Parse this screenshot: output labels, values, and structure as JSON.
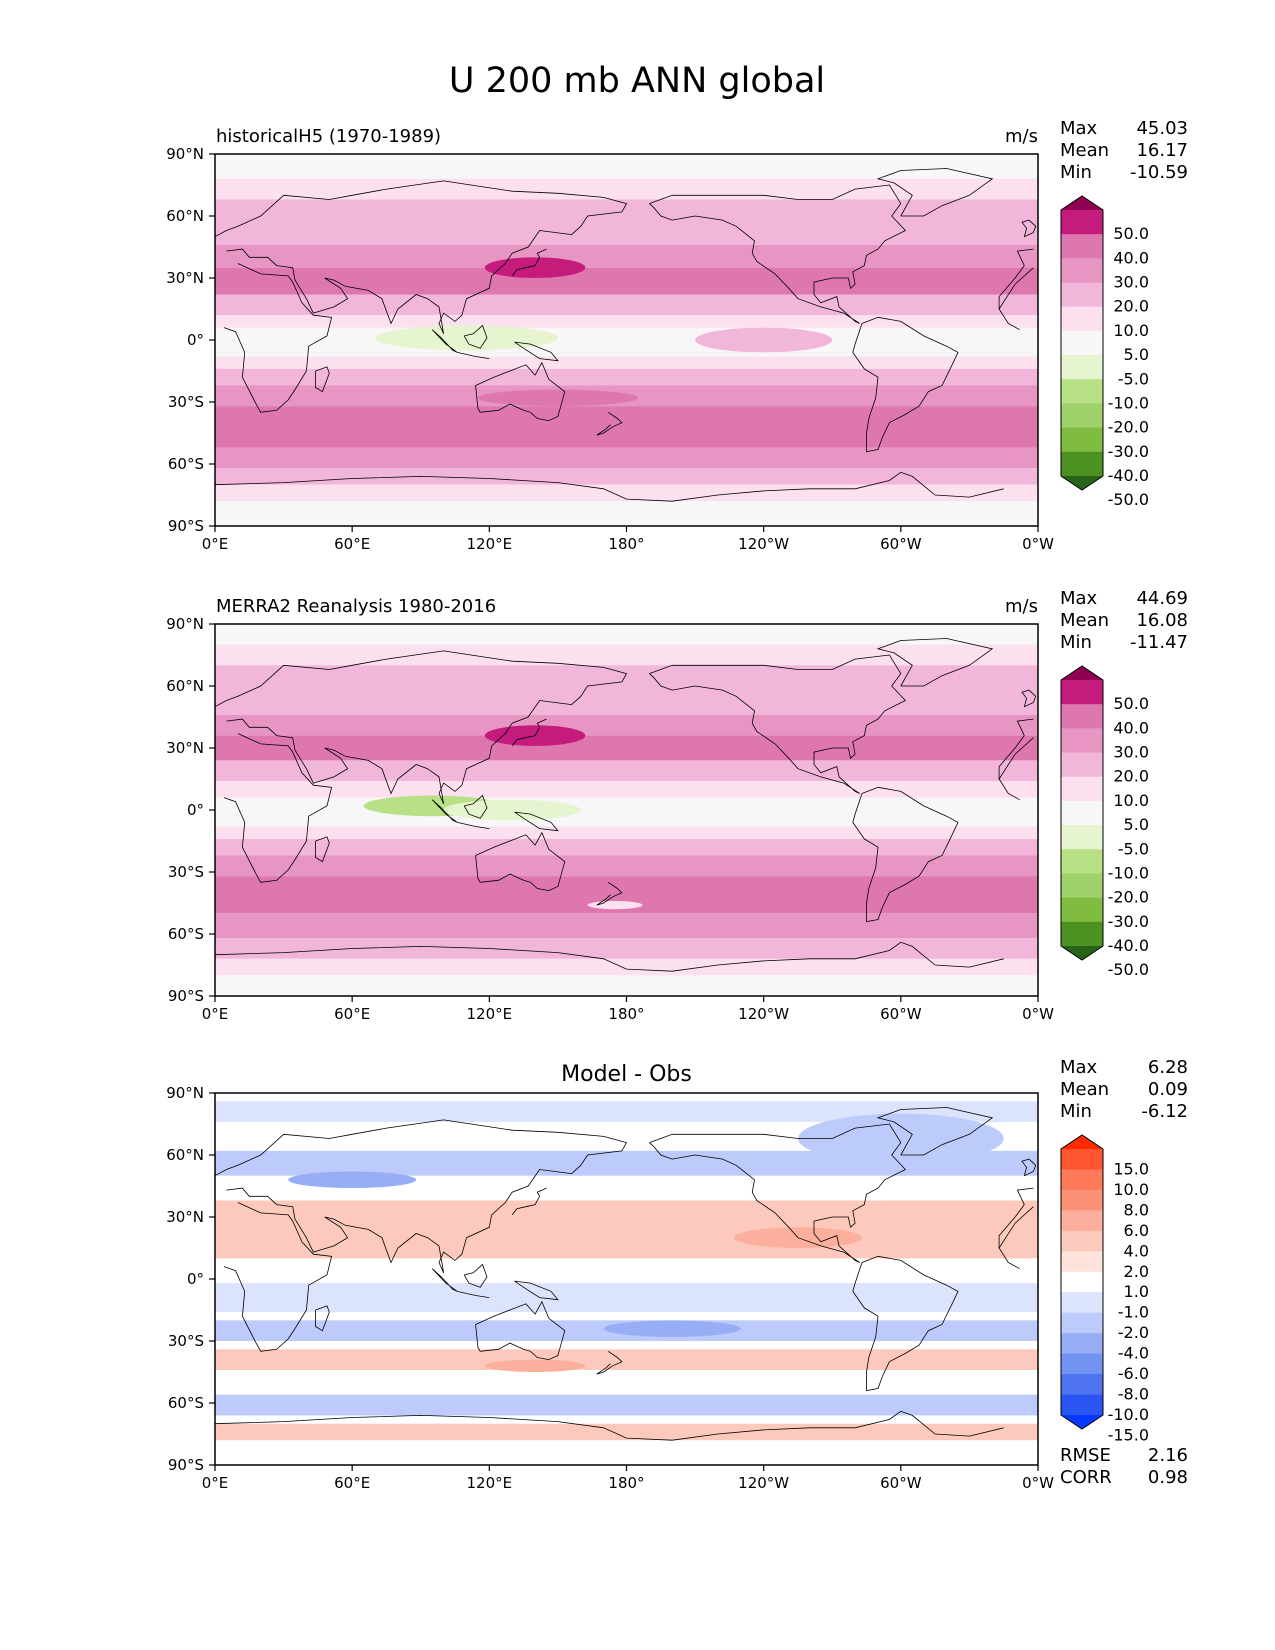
{
  "figure": {
    "title": "U 200 mb ANN global"
  },
  "chart_data": [
    {
      "type": "heatmap",
      "title": "historicalH5 (1970-1989)",
      "units": "m/s",
      "stats": {
        "max_label": "Max",
        "max": "45.03",
        "mean_label": "Mean",
        "mean": "16.17",
        "min_label": "Min",
        "min": "-10.59"
      },
      "x_ticks": [
        "0°E",
        "60°E",
        "120°E",
        "180°",
        "120°W",
        "60°W",
        "0°W"
      ],
      "y_ticks": [
        "90°N",
        "60°N",
        "30°N",
        "0°",
        "30°S",
        "60°S",
        "90°S"
      ],
      "xlim": [
        0,
        360
      ],
      "ylim": [
        -90,
        90
      ],
      "colorbar": {
        "labels": [
          "50.0",
          "40.0",
          "30.0",
          "20.0",
          "10.0",
          "5.0",
          "-5.0",
          "-10.0",
          "-20.0",
          "-30.0",
          "-40.0",
          "-50.0"
        ],
        "colors": [
          "#8e0152",
          "#c51b7d",
          "#de77ae",
          "#e795c3",
          "#f1b6da",
          "#fde0ef",
          "#f7f7f7",
          "#e6f5d0",
          "#b8e186",
          "#9fd26a",
          "#7fbc41",
          "#4d9221",
          "#276419"
        ]
      },
      "bands": [
        {
          "lat": [
            90,
            78
          ],
          "value": 0
        },
        {
          "lat": [
            78,
            68
          ],
          "value": 8
        },
        {
          "lat": [
            68,
            60
          ],
          "value": 12
        },
        {
          "lat": [
            60,
            46
          ],
          "value": 18
        },
        {
          "lat": [
            46,
            35
          ],
          "value": 24
        },
        {
          "lat": [
            35,
            22
          ],
          "value": 33
        },
        {
          "lat": [
            22,
            12
          ],
          "value": 18
        },
        {
          "lat": [
            12,
            6
          ],
          "value": 8
        },
        {
          "lat": [
            6,
            -8
          ],
          "value": 2
        },
        {
          "lat": [
            -8,
            -14
          ],
          "value": 8
        },
        {
          "lat": [
            -14,
            -22
          ],
          "value": 16
        },
        {
          "lat": [
            -22,
            -32
          ],
          "value": 24
        },
        {
          "lat": [
            -32,
            -52
          ],
          "value": 33
        },
        {
          "lat": [
            -52,
            -62
          ],
          "value": 24
        },
        {
          "lat": [
            -62,
            -70
          ],
          "value": 16
        },
        {
          "lat": [
            -70,
            -78
          ],
          "value": 8
        },
        {
          "lat": [
            -78,
            -90
          ],
          "value": 0
        }
      ],
      "blobs": [
        {
          "lon": 140,
          "lat": 35,
          "rlon": 22,
          "rlat": 5,
          "value": 42
        },
        {
          "lon": 110,
          "lat": 1,
          "rlon": 40,
          "rlat": 6,
          "value": -7
        },
        {
          "lon": 240,
          "lat": 0,
          "rlon": 30,
          "rlat": 6,
          "value": 12
        },
        {
          "lon": 150,
          "lat": -28,
          "rlon": 35,
          "rlat": 4,
          "value": 34
        },
        {
          "lon": 335,
          "lat": -42,
          "rlon": 25,
          "rlat": 7,
          "value": 34
        }
      ]
    },
    {
      "type": "heatmap",
      "title": "MERRA2 Reanalysis 1980-2016",
      "units": "m/s",
      "stats": {
        "max_label": "Max",
        "max": "44.69",
        "mean_label": "Mean",
        "mean": "16.08",
        "min_label": "Min",
        "min": "-11.47"
      },
      "x_ticks": [
        "0°E",
        "60°E",
        "120°E",
        "180°",
        "120°W",
        "60°W",
        "0°W"
      ],
      "y_ticks": [
        "90°N",
        "60°N",
        "30°N",
        "0°",
        "30°S",
        "60°S",
        "90°S"
      ],
      "xlim": [
        0,
        360
      ],
      "ylim": [
        -90,
        90
      ],
      "colorbar": {
        "labels": [
          "50.0",
          "40.0",
          "30.0",
          "20.0",
          "10.0",
          "5.0",
          "-5.0",
          "-10.0",
          "-20.0",
          "-30.0",
          "-40.0",
          "-50.0"
        ],
        "colors": [
          "#8e0152",
          "#c51b7d",
          "#de77ae",
          "#e795c3",
          "#f1b6da",
          "#fde0ef",
          "#f7f7f7",
          "#e6f5d0",
          "#b8e186",
          "#9fd26a",
          "#7fbc41",
          "#4d9221",
          "#276419"
        ]
      },
      "bands": [
        {
          "lat": [
            90,
            80
          ],
          "value": 0
        },
        {
          "lat": [
            80,
            70
          ],
          "value": 8
        },
        {
          "lat": [
            70,
            60
          ],
          "value": 12
        },
        {
          "lat": [
            60,
            46
          ],
          "value": 18
        },
        {
          "lat": [
            46,
            36
          ],
          "value": 24
        },
        {
          "lat": [
            36,
            24
          ],
          "value": 31
        },
        {
          "lat": [
            24,
            14
          ],
          "value": 18
        },
        {
          "lat": [
            14,
            6
          ],
          "value": 8
        },
        {
          "lat": [
            6,
            -8
          ],
          "value": 2
        },
        {
          "lat": [
            -8,
            -14
          ],
          "value": 8
        },
        {
          "lat": [
            -14,
            -22
          ],
          "value": 16
        },
        {
          "lat": [
            -22,
            -32
          ],
          "value": 24
        },
        {
          "lat": [
            -32,
            -50
          ],
          "value": 33
        },
        {
          "lat": [
            -50,
            -62
          ],
          "value": 24
        },
        {
          "lat": [
            -62,
            -72
          ],
          "value": 16
        },
        {
          "lat": [
            -72,
            -80
          ],
          "value": 8
        },
        {
          "lat": [
            -80,
            -90
          ],
          "value": 0
        }
      ],
      "blobs": [
        {
          "lon": 140,
          "lat": 36,
          "rlon": 22,
          "rlat": 5,
          "value": 42
        },
        {
          "lon": 95,
          "lat": 2,
          "rlon": 30,
          "rlat": 5,
          "value": -12
        },
        {
          "lon": 130,
          "lat": 0,
          "rlon": 30,
          "rlat": 5,
          "value": -7
        },
        {
          "lon": 175,
          "lat": -46,
          "rlon": 12,
          "rlat": 2,
          "value": 8
        }
      ]
    },
    {
      "type": "heatmap",
      "title": "Model - Obs",
      "units": "",
      "stats": {
        "max_label": "Max",
        "max": "6.28",
        "mean_label": "Mean",
        "mean": "0.09",
        "min_label": "Min",
        "min": "-6.12"
      },
      "metrics": {
        "rmse_label": "RMSE",
        "rmse": "2.16",
        "corr_label": "CORR",
        "corr": "0.98"
      },
      "x_ticks": [
        "0°E",
        "60°E",
        "120°E",
        "180°",
        "120°W",
        "60°W",
        "0°W"
      ],
      "y_ticks": [
        "90°N",
        "60°N",
        "30°N",
        "0°",
        "30°S",
        "60°S",
        "90°S"
      ],
      "xlim": [
        0,
        360
      ],
      "ylim": [
        -90,
        90
      ],
      "colorbar": {
        "labels": [
          "15.0",
          "10.0",
          "8.0",
          "6.0",
          "4.0",
          "2.0",
          "1.0",
          "-1.0",
          "-2.0",
          "-4.0",
          "-6.0",
          "-8.0",
          "-10.0",
          "-15.0"
        ],
        "colors": [
          "#ff2a00",
          "#ff5630",
          "#ff7a5a",
          "#fb9278",
          "#fcaf9c",
          "#fdc9bc",
          "#fde3da",
          "#ffffff",
          "#dce4fd",
          "#bccbfb",
          "#97adf6",
          "#7393f2",
          "#4f74f0",
          "#2a55f3",
          "#0638ff"
        ]
      },
      "bands": [
        {
          "lat": [
            86,
            76
          ],
          "value": -1.5
        },
        {
          "lat": [
            62,
            50
          ],
          "value": -3
        },
        {
          "lat": [
            38,
            10
          ],
          "value": 3
        },
        {
          "lat": [
            -2,
            -16
          ],
          "value": -2
        },
        {
          "lat": [
            -20,
            -30
          ],
          "value": -3
        },
        {
          "lat": [
            -34,
            -44
          ],
          "value": 3
        },
        {
          "lat": [
            -56,
            -66
          ],
          "value": -3
        },
        {
          "lat": [
            -70,
            -78
          ],
          "value": 2
        }
      ],
      "blobs": [
        {
          "lon": 60,
          "lat": 48,
          "rlon": 28,
          "rlat": 4,
          "value": -5
        },
        {
          "lon": 300,
          "lat": 68,
          "rlon": 45,
          "rlat": 12,
          "value": -4
        },
        {
          "lon": 255,
          "lat": 20,
          "rlon": 28,
          "rlat": 5,
          "value": 5
        },
        {
          "lon": 140,
          "lat": -42,
          "rlon": 22,
          "rlat": 3,
          "value": 5
        },
        {
          "lon": 200,
          "lat": -24,
          "rlon": 30,
          "rlat": 4,
          "value": -5
        }
      ]
    }
  ]
}
